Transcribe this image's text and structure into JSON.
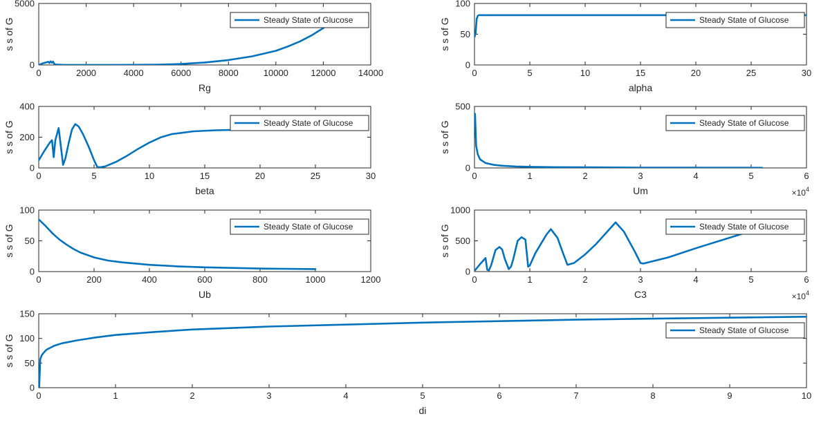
{
  "figure": {
    "background": "#ffffff",
    "axis_color": "#262626",
    "line_color": "#0072bd"
  },
  "chart_data": [
    {
      "type": "line",
      "xlabel": "Rg",
      "ylabel": "s s of G",
      "xlim": [
        0,
        14000
      ],
      "ylim": [
        0,
        5000
      ],
      "xticks": [
        0,
        2000,
        4000,
        6000,
        8000,
        10000,
        12000,
        14000
      ],
      "yticks": [
        0,
        5000
      ],
      "legend": {
        "label": "Steady State of Glucose",
        "position": "top-right"
      },
      "series": [
        {
          "x": [
            0,
            150,
            300,
            400,
            450,
            500,
            550,
            600,
            650,
            700,
            1000,
            2000,
            3000,
            4000,
            5000,
            6000,
            7000,
            8000,
            9000,
            10000,
            10500,
            11000,
            11500,
            12000,
            12400
          ],
          "y": [
            0,
            120,
            200,
            260,
            160,
            300,
            180,
            280,
            100,
            40,
            10,
            5,
            5,
            10,
            30,
            80,
            200,
            400,
            700,
            1150,
            1500,
            1900,
            2400,
            3000,
            3600
          ]
        }
      ]
    },
    {
      "type": "line",
      "xlabel": "alpha",
      "ylabel": "s s of G",
      "xlim": [
        0,
        30
      ],
      "ylim": [
        0,
        100
      ],
      "xticks": [
        0,
        5,
        10,
        15,
        20,
        25,
        30
      ],
      "yticks": [
        0,
        50,
        100
      ],
      "legend": {
        "label": "Steady State of Glucose",
        "position": "top-right"
      },
      "series": [
        {
          "x": [
            0.02,
            0.1,
            0.2,
            0.3,
            0.4,
            1,
            5,
            10,
            15,
            20,
            25,
            30
          ],
          "y": [
            46,
            52,
            75,
            80,
            81,
            81,
            81,
            81,
            81,
            81,
            81,
            81
          ]
        }
      ]
    },
    {
      "type": "line",
      "xlabel": "beta",
      "ylabel": "s s of G",
      "xlim": [
        0,
        30
      ],
      "ylim": [
        0,
        400
      ],
      "xticks": [
        0,
        5,
        10,
        15,
        20,
        25,
        30
      ],
      "yticks": [
        0,
        200,
        400
      ],
      "legend": {
        "label": "Steady State of Glucose",
        "position": "top-right"
      },
      "series": [
        {
          "x": [
            0,
            0.5,
            1,
            1.2,
            1.35,
            1.5,
            1.8,
            2.0,
            2.2,
            2.4,
            2.7,
            3.0,
            3.3,
            3.6,
            4.0,
            4.5,
            5.0,
            5.3,
            5.6,
            6.0,
            7,
            8,
            9,
            10,
            11,
            12,
            14,
            16,
            18,
            20
          ],
          "y": [
            50,
            110,
            165,
            180,
            70,
            180,
            260,
            140,
            20,
            60,
            160,
            250,
            285,
            270,
            220,
            140,
            50,
            5,
            5,
            10,
            40,
            80,
            125,
            165,
            198,
            220,
            238,
            245,
            248,
            250
          ]
        }
      ]
    },
    {
      "type": "line",
      "xlabel": "Um",
      "ylabel": "s s of G",
      "xlim": [
        0,
        6
      ],
      "ylim": [
        0,
        500
      ],
      "xticks": [
        0,
        1,
        2,
        3,
        4,
        5,
        6
      ],
      "yticks": [
        0,
        500
      ],
      "x_multiplier": "×10",
      "x_multiplier_exp": "4",
      "legend": {
        "label": "Steady State of Glucose",
        "position": "top-right"
      },
      "series": [
        {
          "x": [
            0.01,
            0.03,
            0.06,
            0.1,
            0.2,
            0.35,
            0.5,
            0.75,
            1.0,
            1.5,
            2,
            3,
            4,
            5,
            5.2
          ],
          "y": [
            440,
            180,
            110,
            70,
            40,
            25,
            18,
            12,
            9,
            6,
            5,
            3,
            2,
            1.5,
            1
          ]
        }
      ]
    },
    {
      "type": "line",
      "xlabel": "Ub",
      "ylabel": "s s of G",
      "xlim": [
        0,
        1200
      ],
      "ylim": [
        0,
        100
      ],
      "xticks": [
        0,
        200,
        400,
        600,
        800,
        1000,
        1200
      ],
      "yticks": [
        0,
        50,
        100
      ],
      "legend": {
        "label": "Steady State of Glucose",
        "position": "top-right"
      },
      "series": [
        {
          "x": [
            0,
            25,
            50,
            75,
            100,
            125,
            150,
            200,
            250,
            300,
            400,
            500,
            600,
            700,
            800,
            900,
            1000
          ],
          "y": [
            85,
            74,
            62,
            52,
            44,
            37,
            31,
            23,
            18,
            15,
            11,
            8.5,
            7,
            6,
            5,
            4.5,
            4
          ]
        }
      ]
    },
    {
      "type": "line",
      "xlabel": "C3",
      "ylabel": "s s of G",
      "xlim": [
        0,
        6
      ],
      "ylim": [
        0,
        1000
      ],
      "xticks": [
        0,
        1,
        2,
        3,
        4,
        5,
        6
      ],
      "yticks": [
        0,
        500,
        1000
      ],
      "x_multiplier": "×10",
      "x_multiplier_exp": "4",
      "legend": {
        "label": "Steady State of Glucose",
        "position": "top-right"
      },
      "series": [
        {
          "x": [
            0,
            0.1,
            0.2,
            0.23,
            0.26,
            0.3,
            0.38,
            0.45,
            0.5,
            0.55,
            0.62,
            0.66,
            0.7,
            0.78,
            0.85,
            0.92,
            0.97,
            1.0,
            1.1,
            1.2,
            1.3,
            1.38,
            1.5,
            1.6,
            1.68,
            1.8,
            2.0,
            2.2,
            2.4,
            2.55,
            2.7,
            2.9,
            3.0,
            3.05,
            3.5,
            4.0,
            4.5,
            5.0,
            5.2
          ],
          "y": [
            10,
            120,
            220,
            30,
            20,
            100,
            350,
            400,
            360,
            200,
            40,
            80,
            200,
            500,
            560,
            520,
            80,
            100,
            300,
            450,
            600,
            690,
            550,
            300,
            110,
            140,
            280,
            450,
            650,
            800,
            650,
            320,
            140,
            130,
            230,
            380,
            520,
            660,
            710
          ]
        }
      ]
    },
    {
      "type": "line",
      "xlabel": "di",
      "ylabel": "s s of G",
      "xlim": [
        0,
        10
      ],
      "ylim": [
        0,
        150
      ],
      "xticks": [
        0,
        1,
        2,
        3,
        4,
        5,
        6,
        7,
        8,
        9,
        10
      ],
      "yticks": [
        0,
        50,
        100,
        150
      ],
      "legend": {
        "label": "Steady State of Glucose",
        "position": "top-right"
      },
      "series": [
        {
          "x": [
            0.005,
            0.02,
            0.04,
            0.07,
            0.1,
            0.2,
            0.3,
            0.5,
            0.75,
            1,
            1.5,
            2,
            3,
            4,
            5,
            6,
            7,
            8,
            9,
            10
          ],
          "y": [
            0,
            58,
            66,
            72,
            77,
            85,
            90,
            96,
            102,
            107,
            113,
            118,
            124,
            128,
            132,
            135,
            138,
            140,
            142,
            144
          ]
        }
      ]
    }
  ]
}
